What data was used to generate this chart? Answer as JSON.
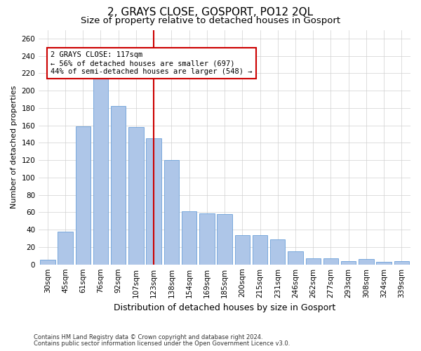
{
  "title": "2, GRAYS CLOSE, GOSPORT, PO12 2QL",
  "subtitle": "Size of property relative to detached houses in Gosport",
  "xlabel": "Distribution of detached houses by size in Gosport",
  "ylabel": "Number of detached properties",
  "categories": [
    "30sqm",
    "45sqm",
    "61sqm",
    "76sqm",
    "92sqm",
    "107sqm",
    "123sqm",
    "138sqm",
    "154sqm",
    "169sqm",
    "185sqm",
    "200sqm",
    "215sqm",
    "231sqm",
    "246sqm",
    "262sqm",
    "277sqm",
    "293sqm",
    "308sqm",
    "324sqm",
    "339sqm"
  ],
  "values": [
    5,
    38,
    159,
    218,
    182,
    158,
    145,
    120,
    61,
    59,
    58,
    34,
    34,
    29,
    15,
    7,
    7,
    4,
    6,
    3,
    4
  ],
  "bar_color": "#aec6e8",
  "bar_edge_color": "#6a9fd8",
  "vline_x": 6,
  "vline_color": "#cc0000",
  "annotation_text": "2 GRAYS CLOSE: 117sqm\n← 56% of detached houses are smaller (697)\n44% of semi-detached houses are larger (548) →",
  "annotation_box_color": "#ffffff",
  "annotation_box_edge": "#cc0000",
  "ylim": [
    0,
    270
  ],
  "yticks": [
    0,
    20,
    40,
    60,
    80,
    100,
    120,
    140,
    160,
    180,
    200,
    220,
    240,
    260
  ],
  "footnote1": "Contains HM Land Registry data © Crown copyright and database right 2024.",
  "footnote2": "Contains public sector information licensed under the Open Government Licence v3.0.",
  "bg_color": "#ffffff",
  "grid_color": "#d0d0d0",
  "title_fontsize": 11,
  "subtitle_fontsize": 9.5,
  "xlabel_fontsize": 9,
  "ylabel_fontsize": 8,
  "tick_fontsize": 7.5,
  "footnote_fontsize": 6
}
